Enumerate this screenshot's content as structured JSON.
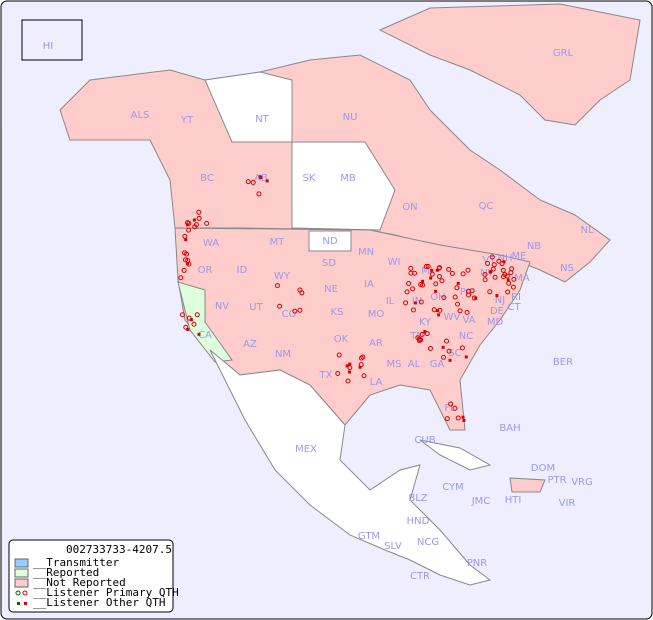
{
  "map": {
    "colors": {
      "ocean": "#eeeeff",
      "not_reported": "#ffcccc",
      "reported": "#ddffdd",
      "transmitter": "#99ccff",
      "unlisted": "#ffffff",
      "border": "#888888",
      "label": "#9a9ae8",
      "listener": "#dd0000"
    },
    "regions": [
      "HI",
      "ALS",
      "YT",
      "NT",
      "NU",
      "GRL",
      "BC",
      "AB",
      "SK",
      "MB",
      "ON",
      "QC",
      "NL",
      "NS",
      "NB",
      "WA",
      "OR",
      "ID",
      "MT",
      "WY",
      "ND",
      "SD",
      "MN",
      "WI",
      "MI",
      "NE",
      "IA",
      "IL",
      "IN",
      "OH",
      "PA",
      "NY",
      "NV",
      "UT",
      "CO",
      "KS",
      "MO",
      "KY",
      "WV",
      "VA",
      "MD",
      "DE",
      "NJ",
      "CT",
      "RI",
      "MA",
      "VT",
      "NH",
      "ME",
      "CA",
      "AZ",
      "NM",
      "OK",
      "AR",
      "TN",
      "NC",
      "SC",
      "GA",
      "AL",
      "MS",
      "LA",
      "TX",
      "FL",
      "MEX",
      "CUB",
      "BAH",
      "BER",
      "DOM",
      "PTR",
      "VRG",
      "CYM",
      "JMC",
      "HTI",
      "VIR",
      "BLZ",
      "HND",
      "GTM",
      "SLV",
      "NCG",
      "CTR",
      "PNR"
    ]
  },
  "legend": {
    "id": "002733733-4207.5",
    "items": [
      "__Transmitter",
      "__Reported",
      "__Not Reported",
      "__Listener Primary QTH",
      "__Listener Other QTH"
    ]
  }
}
